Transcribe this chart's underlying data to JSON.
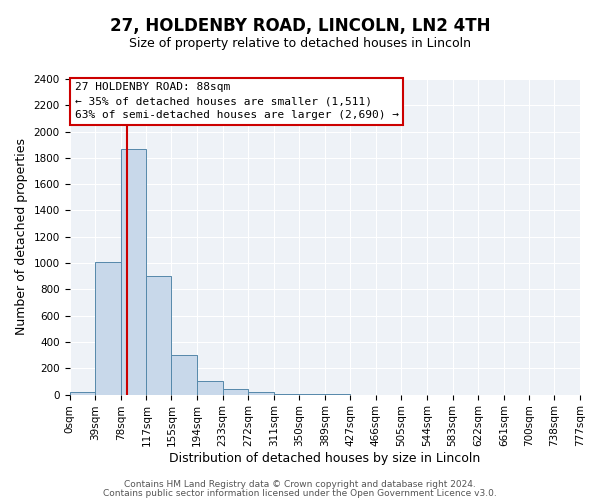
{
  "title": "27, HOLDENBY ROAD, LINCOLN, LN2 4TH",
  "subtitle": "Size of property relative to detached houses in Lincoln",
  "xlabel": "Distribution of detached houses by size in Lincoln",
  "ylabel": "Number of detached properties",
  "bar_color": "#c8d8ea",
  "bar_edge_color": "#5588aa",
  "bin_edges": [
    0,
    39,
    78,
    117,
    155,
    194,
    233,
    272,
    311,
    350,
    389,
    427,
    466,
    505,
    544,
    583,
    622,
    661,
    700,
    738,
    777
  ],
  "bin_labels": [
    "0sqm",
    "39sqm",
    "78sqm",
    "117sqm",
    "155sqm",
    "194sqm",
    "233sqm",
    "272sqm",
    "311sqm",
    "350sqm",
    "389sqm",
    "427sqm",
    "466sqm",
    "505sqm",
    "544sqm",
    "583sqm",
    "622sqm",
    "661sqm",
    "700sqm",
    "738sqm",
    "777sqm"
  ],
  "counts": [
    18,
    1010,
    1870,
    900,
    300,
    100,
    45,
    20,
    5,
    2,
    1,
    0,
    0,
    0,
    0,
    0,
    0,
    0,
    0,
    0
  ],
  "vline_x": 88,
  "vline_color": "#cc0000",
  "annotation_title": "27 HOLDENBY ROAD: 88sqm",
  "annotation_line1": "← 35% of detached houses are smaller (1,511)",
  "annotation_line2": "63% of semi-detached houses are larger (2,690) →",
  "ylim": [
    0,
    2400
  ],
  "yticks": [
    0,
    200,
    400,
    600,
    800,
    1000,
    1200,
    1400,
    1600,
    1800,
    2000,
    2200,
    2400
  ],
  "footer1": "Contains HM Land Registry data © Crown copyright and database right 2024.",
  "footer2": "Contains public sector information licensed under the Open Government Licence v3.0.",
  "bg_color": "#ffffff",
  "plot_bg_color": "#eef2f7",
  "grid_color": "#ffffff",
  "title_fontsize": 12,
  "subtitle_fontsize": 9,
  "axis_label_fontsize": 9,
  "tick_fontsize": 7.5,
  "annotation_fontsize": 8,
  "footer_fontsize": 6.5
}
